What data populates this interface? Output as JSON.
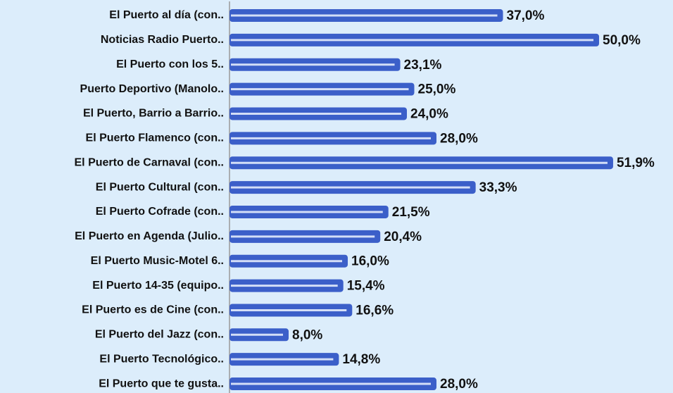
{
  "chart_data": {
    "type": "barh",
    "categories": [
      "El Puerto al día (con..",
      "Noticias Radio Puerto..",
      "El Puerto con los 5..",
      "Puerto Deportivo (Manolo..",
      "El Puerto, Barrio a Barrio..",
      "El Puerto Flamenco (con..",
      "El Puerto de Carnaval (con..",
      "El Puerto Cultural (con..",
      "El Puerto Cofrade (con..",
      "El Puerto en Agenda (Julio..",
      "El Puerto Music-Motel 6..",
      "El Puerto 14-35 (equipo..",
      "El Puerto es de Cine (con..",
      "El Puerto del Jazz (con..",
      "El Puerto Tecnológico..",
      "El Puerto que te gusta.."
    ],
    "values": [
      37.0,
      50.0,
      23.1,
      25.0,
      24.0,
      28.0,
      51.9,
      33.3,
      21.5,
      20.4,
      16.0,
      15.4,
      16.6,
      8.0,
      14.8,
      28.0
    ],
    "value_labels": [
      "37,0%",
      "50,0%",
      "23,1%",
      "25,0%",
      "24,0%",
      "28,0%",
      "51,9%",
      "33,3%",
      "21,5%",
      "20,4%",
      "16,0%",
      "15,4%",
      "16,6%",
      "8,0%",
      "14,8%",
      "28,0%"
    ],
    "color": "#3b5fc9",
    "xlim": [
      0,
      55
    ]
  }
}
